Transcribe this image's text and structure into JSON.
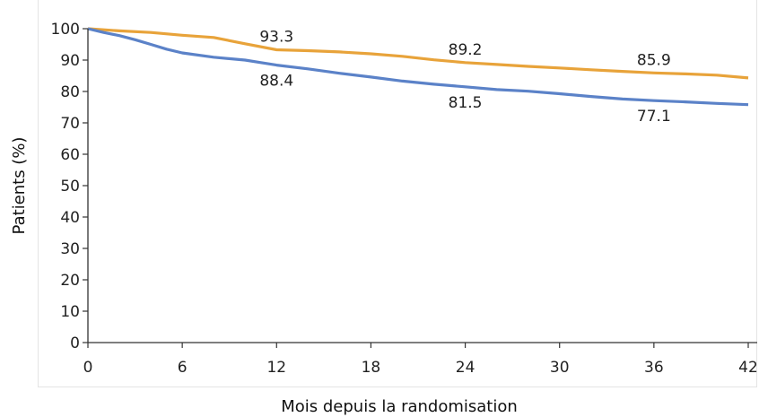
{
  "chart_data": {
    "type": "line",
    "xlabel": "Mois depuis la randomisation",
    "ylabel": "Patients (%)",
    "xlim": [
      0,
      42
    ],
    "ylim": [
      0,
      100
    ],
    "xticks": [
      0,
      6,
      12,
      18,
      24,
      30,
      36,
      42
    ],
    "yticks": [
      0,
      10,
      20,
      30,
      40,
      50,
      60,
      70,
      80,
      90,
      100
    ],
    "grid": false,
    "series": [
      {
        "color": "#e8a33a",
        "x": [
          0,
          2,
          4,
          6,
          8,
          10,
          12,
          14,
          16,
          18,
          20,
          22,
          24,
          26,
          28,
          30,
          32,
          34,
          36,
          38,
          40,
          42
        ],
        "y": [
          100,
          99.3,
          98.8,
          97.9,
          97.2,
          95.2,
          93.3,
          93.0,
          92.6,
          92.0,
          91.2,
          90.1,
          89.2,
          88.6,
          88.0,
          87.5,
          86.9,
          86.4,
          85.9,
          85.6,
          85.2,
          84.3
        ]
      },
      {
        "color": "#5b82c8",
        "x": [
          0,
          1,
          2,
          3,
          4,
          5,
          6,
          8,
          10,
          11,
          12,
          14,
          16,
          18,
          20,
          22,
          24,
          26,
          28,
          30,
          32,
          34,
          36,
          38,
          40,
          42
        ],
        "y": [
          100,
          98.8,
          97.8,
          96.5,
          95.0,
          93.5,
          92.3,
          90.9,
          90.0,
          89.2,
          88.4,
          87.2,
          85.8,
          84.6,
          83.3,
          82.3,
          81.5,
          80.6,
          80.1,
          79.3,
          78.4,
          77.6,
          77.1,
          76.7,
          76.2,
          75.8
        ]
      }
    ],
    "annotations": [
      {
        "text": "93.3",
        "x": 12,
        "y": 93.3,
        "pos": "above"
      },
      {
        "text": "89.2",
        "x": 24,
        "y": 89.2,
        "pos": "above"
      },
      {
        "text": "85.9",
        "x": 36,
        "y": 85.9,
        "pos": "above"
      },
      {
        "text": "88.4",
        "x": 12,
        "y": 88.4,
        "pos": "below"
      },
      {
        "text": "81.5",
        "x": 24,
        "y": 81.5,
        "pos": "below"
      },
      {
        "text": "77.1",
        "x": 36,
        "y": 77.1,
        "pos": "below"
      }
    ]
  }
}
